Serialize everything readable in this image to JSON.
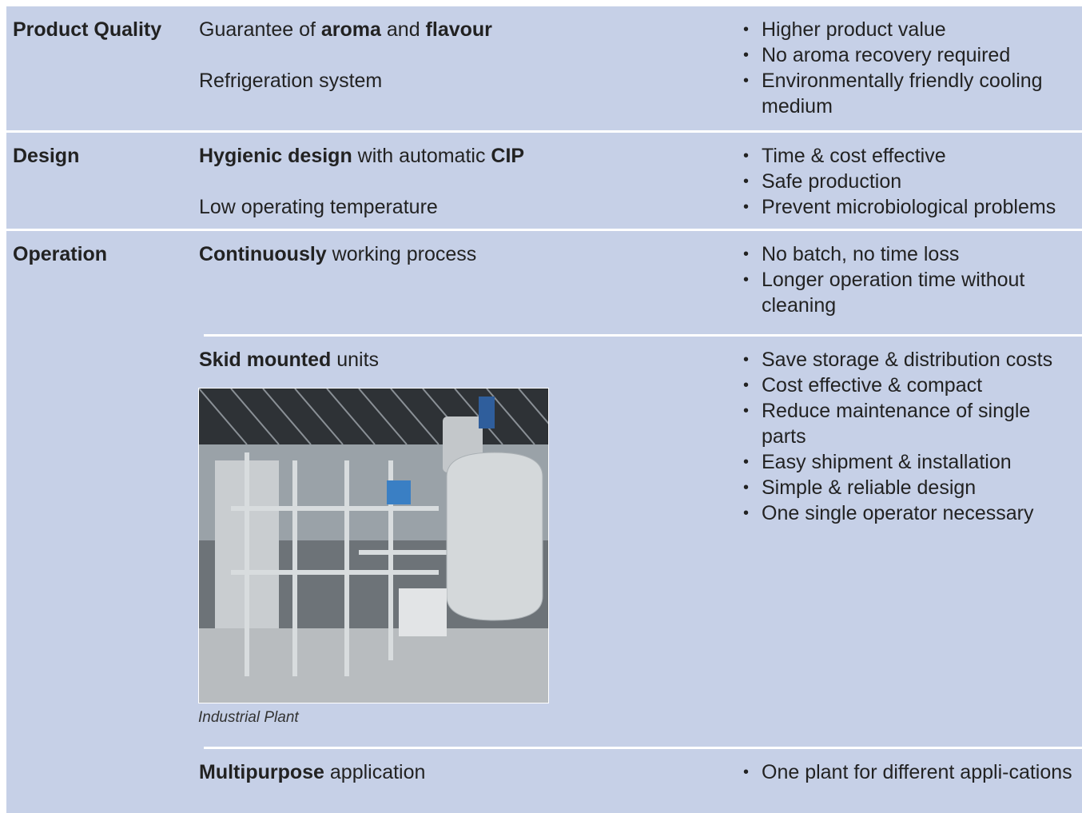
{
  "rows": [
    {
      "label": "Product Quality",
      "groups": [
        {
          "features": [
            [
              {
                "text": "Guarantee of ",
                "bold": false
              },
              {
                "text": "aroma",
                "bold": true
              },
              {
                "text": " and ",
                "bold": false
              },
              {
                "text": "flavour",
                "bold": true
              }
            ],
            [
              {
                "text": "Refrigeration system",
                "bold": false
              }
            ]
          ],
          "benefits": [
            "Higher product value",
            "No aroma recovery required",
            "Environmentally friendly cooling medium"
          ]
        }
      ]
    },
    {
      "label": "Design",
      "groups": [
        {
          "features": [
            [
              {
                "text": "Hygienic design",
                "bold": true
              },
              {
                "text": " with automatic ",
                "bold": false
              },
              {
                "text": "CIP",
                "bold": true
              }
            ],
            [
              {
                "text": "Low operating temperature",
                "bold": false
              }
            ]
          ],
          "benefits": [
            "Time & cost effective",
            "Safe production",
            "Prevent microbiological problems"
          ]
        }
      ]
    },
    {
      "label": "Operation",
      "groups": [
        {
          "features": [
            [
              {
                "text": "Continuously",
                "bold": true
              },
              {
                "text": " working process",
                "bold": false
              }
            ]
          ],
          "benefits": [
            "No batch, no time loss",
            "Longer operation time without cleaning"
          ]
        },
        {
          "features": [
            [
              {
                "text": "Skid mounted",
                "bold": true
              },
              {
                "text": " units",
                "bold": false
              }
            ]
          ],
          "caption": "Industrial Plant",
          "benefits": [
            "Save storage & distribution costs",
            "Cost effective & compact",
            "Reduce maintenance of single parts",
            "Easy shipment & installation",
            "Simple & reliable design",
            "One single operator necessary"
          ]
        },
        {
          "features": [
            [
              {
                "text": "Multipurpose",
                "bold": true
              },
              {
                "text": " application",
                "bold": false
              }
            ]
          ],
          "benefits": [
            "One plant for different appli-cations"
          ]
        }
      ]
    }
  ]
}
